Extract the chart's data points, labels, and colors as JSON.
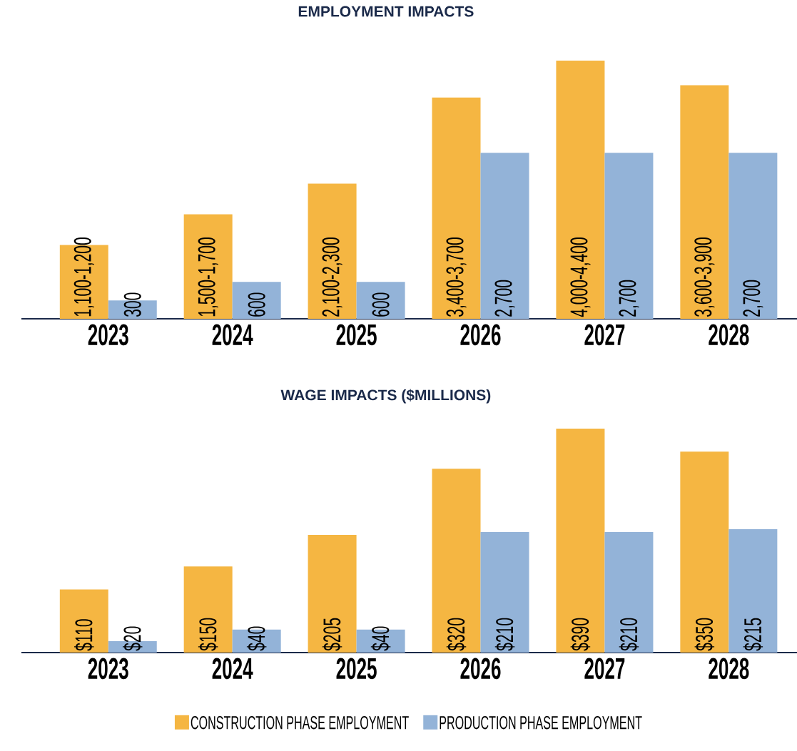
{
  "chart_data": [
    {
      "type": "bar",
      "title": "EMPLOYMENT IMPACTS",
      "categories": [
        "2023",
        "2024",
        "2025",
        "2026",
        "2027",
        "2028"
      ],
      "legend": false,
      "series": [
        {
          "color": "#f5b642",
          "values": [
            1200,
            1700,
            2200,
            3600,
            4200,
            3800
          ],
          "value_labels": [
            "1,100-1,200",
            "1,500-1,700",
            "2,100-2,300",
            "3,400-3,700",
            "4,000-4,400",
            "3,600-3,900"
          ]
        },
        {
          "color": "#93b3d8",
          "values": [
            300,
            600,
            600,
            2700,
            2700,
            2700
          ],
          "value_labels": [
            "300",
            "600",
            "600",
            "2,700",
            "2,700",
            "2,700"
          ]
        }
      ]
    },
    {
      "type": "bar",
      "title": "WAGE IMPACTS ($MILLIONS)",
      "categories": [
        "2023",
        "2024",
        "2025",
        "2026",
        "2027",
        "2028"
      ],
      "legend": "bottom",
      "series": [
        {
          "name": "CONSTRUCTION PHASE EMPLOYMENT",
          "color": "#f5b642",
          "values": [
            110,
            150,
            205,
            320,
            390,
            350
          ],
          "value_labels": [
            "$110",
            "$150",
            "$205",
            "$320",
            "$390",
            "$350"
          ]
        },
        {
          "name": "PRODUCTION PHASE EMPLOYMENT",
          "color": "#93b3d8",
          "values": [
            20,
            40,
            40,
            210,
            210,
            215
          ],
          "value_labels": [
            "$20",
            "$40",
            "$40",
            "$210",
            "$210",
            "$215"
          ]
        }
      ]
    }
  ]
}
